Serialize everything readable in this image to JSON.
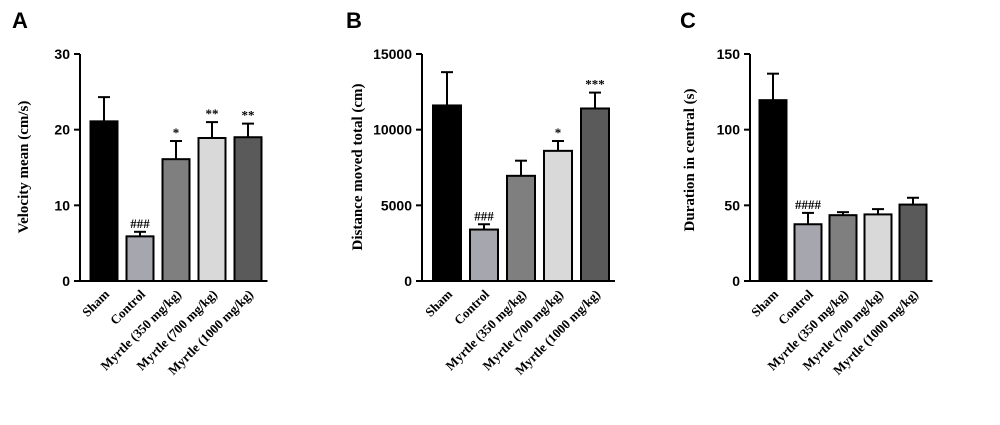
{
  "colors": {
    "bars": [
      "#000000",
      "#a6a6ae",
      "#7f7f7f",
      "#d9d9d9",
      "#5a5a5a"
    ],
    "axis": "#000000"
  },
  "chart_data": [
    {
      "type": "bar",
      "panel_label": "A",
      "ylabel": "Velocity mean (cm/s)",
      "categories": [
        "Sham",
        "Control",
        "Myrtle (350 mg/kg)",
        "Myrtle (700 mg/kg)",
        "Myrtle (1000 mg/kg)"
      ],
      "values": [
        21.1,
        5.9,
        16.1,
        18.9,
        19.0
      ],
      "errors": [
        3.2,
        0.6,
        2.4,
        2.1,
        1.8
      ],
      "annotations": [
        "",
        "###",
        "*",
        "**",
        "**"
      ],
      "ylim": [
        0,
        30
      ],
      "yticks": [
        "0",
        "10",
        "20",
        "30"
      ],
      "grid": false
    },
    {
      "type": "bar",
      "panel_label": "B",
      "ylabel": "Distance moved total (cm)",
      "categories": [
        "Sham",
        "Control",
        "Myrtle (350 mg/kg)",
        "Myrtle (700 mg/kg)",
        "Myrtle (1000 mg/kg)"
      ],
      "values": [
        11600,
        3400,
        6950,
        8600,
        11400
      ],
      "errors": [
        2200,
        350,
        1000,
        650,
        1050
      ],
      "annotations": [
        "",
        "###",
        "",
        "*",
        "***"
      ],
      "ylim": [
        0,
        15000
      ],
      "yticks": [
        "0",
        "5000",
        "10000",
        "15000"
      ],
      "grid": false
    },
    {
      "type": "bar",
      "panel_label": "C",
      "ylabel": "Duration in central (s)",
      "categories": [
        "Sham",
        "Control",
        "Myrtle (350 mg/kg)",
        "Myrtle (700 mg/kg)",
        "Myrtle (1000 mg/kg)"
      ],
      "values": [
        119.5,
        37.5,
        43.5,
        44.0,
        50.5
      ],
      "errors": [
        17.5,
        7.5,
        2.0,
        3.5,
        4.5
      ],
      "annotations": [
        "",
        "####",
        "",
        "",
        ""
      ],
      "ylim": [
        0,
        150
      ],
      "yticks": [
        "0",
        "50",
        "100",
        "150"
      ],
      "grid": false
    }
  ]
}
